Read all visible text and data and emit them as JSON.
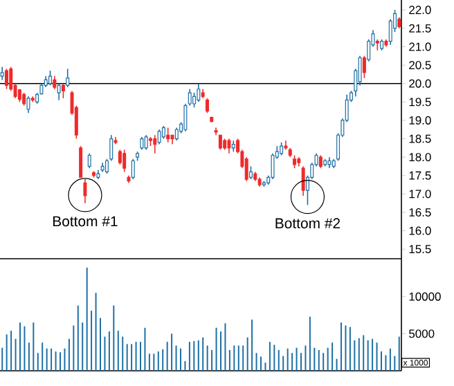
{
  "chart_data": [
    {
      "type": "candlestick",
      "categories": [
        null,
        null,
        null,
        null,
        null,
        null,
        null,
        null,
        null,
        null,
        null,
        null,
        null,
        null,
        null,
        null,
        null,
        null,
        null,
        null,
        null,
        null,
        null,
        null,
        null,
        null,
        null,
        null,
        null,
        null,
        null,
        null,
        null,
        null,
        null,
        null,
        null,
        null,
        null,
        null,
        null,
        null,
        null,
        null,
        null,
        null,
        null,
        null,
        null,
        null,
        null,
        null,
        null,
        null,
        null,
        null,
        null,
        null,
        null,
        null,
        null,
        null,
        null,
        null,
        null,
        null,
        null,
        null,
        null,
        null,
        null,
        null,
        null,
        null,
        null,
        null,
        null,
        null,
        null,
        null,
        null,
        null,
        null,
        null,
        null,
        null,
        null,
        null,
        null,
        null,
        null,
        null
      ],
      "ohlc": [
        [
          20.2,
          20.45,
          20.1,
          20.3
        ],
        [
          20.35,
          20.4,
          19.85,
          19.95
        ],
        [
          20.4,
          20.45,
          19.8,
          19.85
        ],
        [
          19.95,
          20.0,
          19.6,
          19.65
        ],
        [
          19.83,
          19.85,
          19.5,
          19.57
        ],
        [
          19.7,
          19.75,
          19.4,
          19.45
        ],
        [
          19.3,
          19.65,
          19.2,
          19.6
        ],
        [
          19.6,
          19.65,
          19.5,
          19.55
        ],
        [
          19.5,
          19.75,
          19.45,
          19.7
        ],
        [
          19.72,
          20.0,
          19.7,
          19.95
        ],
        [
          19.95,
          20.2,
          19.9,
          20.1
        ],
        [
          20.0,
          20.35,
          19.95,
          20.2
        ],
        [
          20.1,
          20.2,
          19.85,
          19.9
        ],
        [
          19.75,
          20.0,
          19.55,
          19.95
        ],
        [
          19.95,
          20.0,
          19.6,
          19.8
        ],
        [
          19.95,
          20.4,
          19.9,
          20.15
        ],
        [
          19.75,
          19.8,
          19.15,
          19.2
        ],
        [
          19.35,
          19.4,
          18.5,
          18.6
        ],
        [
          18.25,
          18.3,
          17.45,
          17.45
        ],
        [
          17.3,
          17.4,
          16.75,
          16.95
        ],
        [
          17.75,
          18.1,
          17.7,
          18.05
        ],
        [
          17.58,
          17.62,
          17.45,
          17.5
        ],
        [
          17.45,
          17.65,
          17.4,
          17.55
        ],
        [
          17.65,
          17.85,
          17.6,
          17.75
        ],
        [
          17.6,
          17.95,
          17.55,
          17.9
        ],
        [
          17.95,
          18.6,
          17.9,
          18.5
        ],
        [
          18.45,
          18.55,
          18.35,
          18.4
        ],
        [
          18.15,
          18.2,
          17.8,
          17.85
        ],
        [
          18.1,
          18.2,
          17.6,
          17.7
        ],
        [
          17.45,
          17.5,
          17.3,
          17.35
        ],
        [
          17.45,
          17.95,
          17.4,
          17.9
        ],
        [
          18.0,
          18.15,
          17.9,
          18.1
        ],
        [
          18.25,
          18.55,
          18.2,
          18.5
        ],
        [
          18.25,
          18.6,
          18.2,
          18.55
        ],
        [
          18.5,
          18.55,
          18.3,
          18.45
        ],
        [
          18.5,
          18.6,
          18.1,
          18.35
        ],
        [
          18.4,
          18.75,
          18.35,
          18.7
        ],
        [
          18.55,
          18.85,
          18.5,
          18.8
        ],
        [
          18.6,
          18.8,
          18.4,
          18.5
        ],
        [
          18.6,
          18.6,
          18.35,
          18.5
        ],
        [
          18.5,
          18.8,
          18.45,
          18.75
        ],
        [
          18.7,
          18.95,
          18.65,
          18.9
        ],
        [
          18.75,
          19.45,
          18.7,
          19.4
        ],
        [
          19.45,
          19.85,
          19.4,
          19.75
        ],
        [
          19.45,
          19.75,
          19.35,
          19.65
        ],
        [
          19.55,
          20.0,
          19.5,
          19.85
        ],
        [
          19.75,
          19.85,
          19.6,
          19.65
        ],
        [
          19.55,
          19.6,
          19.2,
          19.25
        ],
        [
          19.08,
          19.1,
          18.95,
          18.97
        ],
        [
          18.72,
          18.8,
          18.6,
          18.68
        ],
        [
          18.6,
          18.6,
          18.2,
          18.25
        ],
        [
          18.45,
          18.5,
          18.2,
          18.25
        ],
        [
          18.45,
          18.5,
          18.1,
          18.25
        ],
        [
          18.25,
          18.45,
          18.15,
          18.35
        ],
        [
          18.45,
          18.5,
          18.1,
          18.15
        ],
        [
          18.15,
          18.2,
          17.7,
          17.75
        ],
        [
          17.95,
          18.0,
          17.35,
          17.4
        ],
        [
          17.45,
          17.75,
          17.4,
          17.6
        ],
        [
          17.55,
          17.6,
          17.35,
          17.4
        ],
        [
          17.4,
          17.45,
          17.2,
          17.25
        ],
        [
          17.25,
          17.35,
          17.2,
          17.3
        ],
        [
          17.3,
          17.5,
          17.25,
          17.45
        ],
        [
          17.45,
          18.1,
          17.4,
          18.05
        ],
        [
          18.0,
          18.3,
          17.95,
          18.15
        ],
        [
          18.1,
          18.4,
          18.05,
          18.3
        ],
        [
          18.3,
          18.45,
          18.2,
          18.25
        ],
        [
          18.2,
          18.25,
          18.0,
          18.05
        ],
        [
          17.95,
          18.05,
          17.7,
          17.8
        ],
        [
          17.95,
          18.0,
          17.75,
          17.85
        ],
        [
          17.7,
          17.75,
          16.95,
          17.1
        ],
        [
          17.1,
          17.5,
          16.7,
          17.45
        ],
        [
          17.45,
          17.85,
          17.4,
          17.8
        ],
        [
          17.8,
          18.1,
          17.75,
          18.05
        ],
        [
          18.0,
          18.05,
          17.7,
          17.75
        ],
        [
          17.8,
          17.95,
          17.75,
          17.9
        ],
        [
          17.8,
          18.0,
          17.7,
          17.9
        ],
        [
          17.75,
          17.95,
          17.7,
          17.9
        ],
        [
          17.95,
          18.65,
          17.9,
          18.6
        ],
        [
          18.6,
          19.05,
          18.55,
          19.0
        ],
        [
          19.0,
          19.7,
          18.95,
          19.55
        ],
        [
          19.55,
          19.8,
          19.5,
          19.75
        ],
        [
          19.8,
          20.4,
          19.65,
          20.35
        ],
        [
          20.05,
          20.75,
          19.95,
          20.7
        ],
        [
          20.7,
          20.75,
          20.15,
          20.3
        ],
        [
          20.65,
          21.2,
          20.6,
          21.15
        ],
        [
          21.05,
          21.45,
          21.0,
          21.35
        ],
        [
          21.15,
          21.2,
          20.9,
          21.1
        ],
        [
          20.95,
          21.2,
          20.9,
          21.15
        ],
        [
          21.15,
          21.2,
          21.0,
          21.05
        ],
        [
          21.15,
          21.75,
          21.05,
          21.7
        ],
        [
          21.5,
          22.0,
          21.4,
          21.9
        ],
        [
          21.75,
          21.8,
          21.5,
          21.55
        ]
      ],
      "colors": [
        "#1d6fa5",
        "#ee2a2a",
        "#ee2a2a",
        "#ee2a2a",
        "#ee2a2a",
        "#ee2a2a",
        "#1d6fa5",
        "#ee2a2a",
        "#1d6fa5",
        "#1d6fa5",
        "#1d6fa5",
        "#1d6fa5",
        "#ee2a2a",
        "#1d6fa5",
        "#ee2a2a",
        "#1d6fa5",
        "#ee2a2a",
        "#ee2a2a",
        "#ee2a2a",
        "#ee2a2a",
        "#1d6fa5",
        "#ee2a2a",
        "#1d6fa5",
        "#1d6fa5",
        "#1d6fa5",
        "#1d6fa5",
        "#ee2a2a",
        "#ee2a2a",
        "#ee2a2a",
        "#ee2a2a",
        "#1d6fa5",
        "#1d6fa5",
        "#1d6fa5",
        "#1d6fa5",
        "#ee2a2a",
        "#ee2a2a",
        "#1d6fa5",
        "#1d6fa5",
        "#ee2a2a",
        "#ee2a2a",
        "#1d6fa5",
        "#1d6fa5",
        "#1d6fa5",
        "#1d6fa5",
        "#1d6fa5",
        "#1d6fa5",
        "#ee2a2a",
        "#ee2a2a",
        "#ee2a2a",
        "#ee2a2a",
        "#ee2a2a",
        "#ee2a2a",
        "#ee2a2a",
        "#1d6fa5",
        "#ee2a2a",
        "#ee2a2a",
        "#ee2a2a",
        "#1d6fa5",
        "#ee2a2a",
        "#ee2a2a",
        "#1d6fa5",
        "#1d6fa5",
        "#1d6fa5",
        "#1d6fa5",
        "#1d6fa5",
        "#ee2a2a",
        "#ee2a2a",
        "#ee2a2a",
        "#ee2a2a",
        "#ee2a2a",
        "#1d6fa5",
        "#1d6fa5",
        "#1d6fa5",
        "#ee2a2a",
        "#1d6fa5",
        "#1d6fa5",
        "#1d6fa5",
        "#1d6fa5",
        "#1d6fa5",
        "#1d6fa5",
        "#1d6fa5",
        "#1d6fa5",
        "#1d6fa5",
        "#ee2a2a",
        "#1d6fa5",
        "#1d6fa5",
        "#ee2a2a",
        "#1d6fa5",
        "#ee2a2a",
        "#1d6fa5",
        "#1d6fa5",
        "#ee2a2a"
      ],
      "ylim": [
        15.24,
        22.27
      ],
      "yticks": [
        15.5,
        {
          "value": 16,
          "label": "16.0"
        },
        16.5,
        {
          "value": 17,
          "label": "17.0"
        },
        17.5,
        {
          "value": 18,
          "label": "18.0"
        },
        18.5,
        {
          "value": 19,
          "label": "19.0"
        },
        19.5,
        {
          "value": 20,
          "label": "20.0"
        },
        20.5,
        {
          "value": 21,
          "label": "21.0"
        },
        21.5,
        {
          "value": 22,
          "label": "22.0"
        }
      ],
      "ref_lines": [
        {
          "axis": "y",
          "value": 20,
          "color": "#000000"
        }
      ],
      "annotations": [
        "Bottom #1",
        "Bottom #2"
      ]
    },
    {
      "type": "bar",
      "categories": [
        null,
        null,
        null,
        null,
        null,
        null,
        null,
        null,
        null,
        null,
        null,
        null,
        null,
        null,
        null,
        null,
        null,
        null,
        null,
        null,
        null,
        null,
        null,
        null,
        null,
        null,
        null,
        null,
        null,
        null,
        null,
        null,
        null,
        null,
        null,
        null,
        null,
        null,
        null,
        null,
        null,
        null,
        null,
        null,
        null,
        null,
        null,
        null,
        null,
        null,
        null,
        null,
        null,
        null,
        null,
        null,
        null,
        null,
        null,
        null,
        null,
        null,
        null,
        null,
        null,
        null,
        null,
        null,
        null,
        null,
        null,
        null,
        null,
        null,
        null,
        null,
        null,
        null,
        null,
        null,
        null,
        null,
        null,
        null,
        null,
        null,
        null,
        null,
        null,
        null
      ],
      "values": [
        3100,
        4900,
        5400,
        4300,
        6500,
        6000,
        3800,
        6500,
        2400,
        3800,
        3000,
        3000,
        2600,
        2500,
        3000,
        4300,
        6100,
        8800,
        6500,
        13900,
        8100,
        10500,
        7100,
        4600,
        5300,
        8800,
        5400,
        4600,
        3600,
        3600,
        3900,
        3900,
        5800,
        2300,
        2300,
        2600,
        2900,
        3900,
        5000,
        3400,
        3000,
        1300,
        3900,
        4000,
        4100,
        4500,
        3400,
        2800,
        5800,
        5300,
        6400,
        2800,
        3400,
        3400,
        3400,
        4500,
        6900,
        2400,
        1900,
        1100,
        3900,
        3500,
        2800,
        2000,
        3000,
        2400,
        3100,
        2400,
        3400,
        7300,
        3100,
        2800,
        2400,
        3100,
        3800,
        1600,
        6500,
        6100,
        5900,
        4100,
        4400,
        4800,
        4100,
        4300,
        3800,
        2600,
        2100,
        3000,
        2000,
        4600
      ],
      "color": "#1d6fa5",
      "ylim": [
        0,
        15100
      ],
      "yticks": [
        5000,
        10000
      ],
      "annotations": [
        "x 1000"
      ]
    }
  ]
}
